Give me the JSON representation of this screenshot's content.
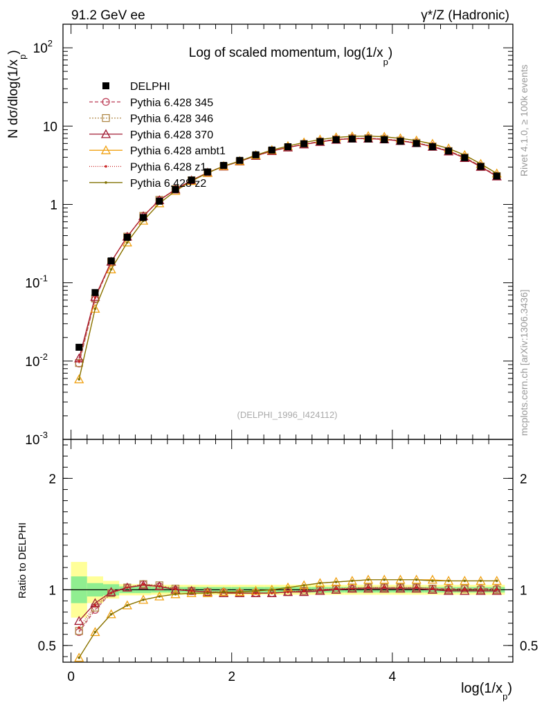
{
  "header": {
    "left": "91.2 GeV ee",
    "right": "γ*/Z (Hadronic)"
  },
  "side": {
    "rivet": "Rivet 4.1.0, ≥ 100k events",
    "mcplots": "mcplots.cern.ch [arXiv:1306.3436]"
  },
  "chart_data": {
    "type": "line",
    "title": "Log of scaled momentum, log(1/x_p)",
    "title_parts": {
      "main": "Log of scaled momentum, log(1/x",
      "sub": "p",
      "close": ")"
    },
    "ylabel_parts": {
      "main": "N  dσ/dlog(1/x",
      "sub": "p",
      "close": ")"
    },
    "xlabel_parts": {
      "main": "log(1/x",
      "sub": "p",
      "close": ")"
    },
    "ratio_ylabel": "Ratio to DELPHI",
    "watermark": "(DELPHI_1996_I424112)",
    "xlim": [
      -0.1,
      5.5
    ],
    "ylim": [
      0.001,
      200
    ],
    "yscale": "log",
    "ratio_ylim": [
      0.35,
      2.35
    ],
    "x_ticks": [
      "0",
      "2",
      "4"
    ],
    "y_ticks": [
      "10^2",
      "10",
      "1",
      "10^-1",
      "10^-2",
      "10^-3"
    ],
    "ratio_ticks": [
      "2",
      "1",
      "0.5"
    ],
    "x": [
      0.1,
      0.3,
      0.5,
      0.7,
      0.9,
      1.1,
      1.3,
      1.5,
      1.7,
      1.9,
      2.1,
      2.3,
      2.5,
      2.7,
      2.9,
      3.1,
      3.3,
      3.5,
      3.7,
      3.9,
      4.1,
      4.3,
      4.5,
      4.7,
      4.9,
      5.1,
      5.3
    ],
    "data": {
      "name": "DELPHI",
      "values": [
        0.015,
        0.075,
        0.19,
        0.38,
        0.68,
        1.1,
        1.55,
        2.05,
        2.6,
        3.15,
        3.65,
        4.3,
        4.95,
        5.45,
        5.95,
        6.35,
        6.7,
        6.85,
        6.85,
        6.7,
        6.4,
        6.0,
        5.45,
        4.8,
        3.95,
        3.05,
        2.3
      ],
      "band_inner": [
        0.12,
        0.06,
        0.05,
        0.03,
        0.03,
        0.025,
        0.025,
        0.025,
        0.025,
        0.025,
        0.025,
        0.025,
        0.025,
        0.025,
        0.025,
        0.025,
        0.025,
        0.025,
        0.025,
        0.025,
        0.025,
        0.025,
        0.025,
        0.025,
        0.025,
        0.025,
        0.025
      ],
      "band_outer": [
        0.25,
        0.12,
        0.08,
        0.05,
        0.05,
        0.045,
        0.045,
        0.045,
        0.045,
        0.045,
        0.045,
        0.045,
        0.045,
        0.045,
        0.045,
        0.045,
        0.045,
        0.045,
        0.045,
        0.045,
        0.045,
        0.045,
        0.045,
        0.045,
        0.045,
        0.045,
        0.045
      ]
    },
    "series": [
      {
        "name": "Pythia 6.428 345",
        "color": "#c04860",
        "dash": "5,3",
        "marker": "circle",
        "ratio": [
          0.62,
          0.82,
          0.97,
          1.02,
          1.05,
          1.03,
          1.0,
          0.99,
          0.98,
          0.98,
          0.97,
          0.97,
          0.97,
          0.98,
          0.99,
          1.0,
          1.01,
          1.01,
          1.02,
          1.02,
          1.02,
          1.02,
          1.01,
          1.01,
          1.01,
          1.01,
          1.01
        ]
      },
      {
        "name": "Pythia 6.428 346",
        "color": "#b08848",
        "dash": "2,2",
        "marker": "square",
        "ratio": [
          0.63,
          0.84,
          0.97,
          1.02,
          1.05,
          1.04,
          1.01,
          0.99,
          0.98,
          0.97,
          0.97,
          0.97,
          0.97,
          0.98,
          0.99,
          1.0,
          1.01,
          1.02,
          1.02,
          1.02,
          1.02,
          1.02,
          1.01,
          1.0,
          1.01,
          1.0,
          1.0
        ]
      },
      {
        "name": "Pythia 6.428 370",
        "color": "#a01830",
        "dash": "",
        "marker": "triangle",
        "ratio": [
          0.72,
          0.88,
          0.98,
          1.02,
          1.04,
          1.03,
          1.0,
          0.99,
          0.98,
          0.97,
          0.97,
          0.97,
          0.97,
          0.98,
          0.98,
          0.99,
          1.0,
          1.01,
          1.01,
          1.01,
          1.01,
          1.01,
          1.0,
          0.99,
          0.99,
          0.99,
          0.99
        ]
      },
      {
        "name": "Pythia 6.428 ambt1",
        "color": "#f0a010",
        "dash": "",
        "marker": "triangle",
        "ratio": [
          0.39,
          0.62,
          0.78,
          0.86,
          0.91,
          0.94,
          0.96,
          0.97,
          0.97,
          0.98,
          0.98,
          0.99,
          1.0,
          1.02,
          1.04,
          1.06,
          1.07,
          1.08,
          1.09,
          1.09,
          1.09,
          1.09,
          1.09,
          1.08,
          1.08,
          1.08,
          1.08
        ]
      },
      {
        "name": "Pythia 6.428 z1",
        "color": "#c82020",
        "dash": "1,2",
        "marker": "dot",
        "ratio": [
          0.66,
          0.86,
          0.97,
          1.02,
          1.05,
          1.03,
          1.01,
          0.99,
          0.98,
          0.98,
          0.97,
          0.97,
          0.97,
          0.98,
          0.99,
          1.0,
          1.01,
          1.01,
          1.02,
          1.02,
          1.02,
          1.02,
          1.01,
          1.0,
          1.0,
          1.0,
          1.0
        ]
      },
      {
        "name": "Pythia 6.428 z2",
        "color": "#807000",
        "dash": "",
        "marker": "dot",
        "ratio": [
          0.39,
          0.62,
          0.78,
          0.86,
          0.91,
          0.94,
          0.96,
          0.97,
          0.97,
          0.98,
          0.98,
          0.99,
          1.0,
          1.02,
          1.04,
          1.06,
          1.07,
          1.08,
          1.09,
          1.09,
          1.09,
          1.09,
          1.08,
          1.08,
          1.08,
          1.08,
          1.08
        ]
      }
    ]
  }
}
